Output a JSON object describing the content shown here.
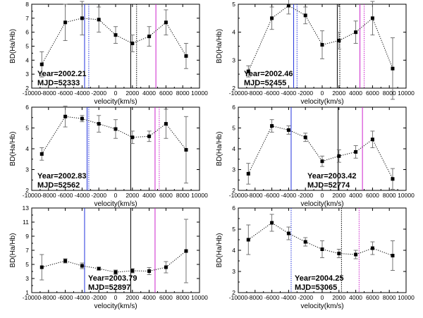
{
  "figure": {
    "panel_count": 6,
    "colors": {
      "data": "#000000",
      "errorbar": "#666666",
      "blue_line": "#2233dd",
      "magenta_line": "#cc22cc",
      "black_line": "#000000"
    }
  },
  "chart_data": [
    {
      "type": "line",
      "title": "",
      "xlabel": "velocity(km/s)",
      "ylabel": "BD(Ha/Hb)",
      "xlim": [
        -10000,
        10000
      ],
      "ylim": [
        2,
        8
      ],
      "xticks": [
        -10000,
        -8000,
        -6000,
        -4000,
        -2000,
        0,
        2000,
        4000,
        6000,
        8000,
        10000
      ],
      "yticks": [
        2,
        3,
        4,
        5,
        6,
        7,
        8
      ],
      "x": [
        -8800,
        -6000,
        -4000,
        -2000,
        0,
        2000,
        4000,
        6000,
        8400
      ],
      "y": [
        3.7,
        6.7,
        7.0,
        6.9,
        5.8,
        5.2,
        5.7,
        6.7,
        4.3
      ],
      "errors": [
        0.9,
        1.3,
        1.2,
        0.9,
        0.6,
        0.6,
        0.7,
        0.9,
        0.9
      ],
      "annotation": {
        "year": "Year=2002.21",
        "mjd": "MJD=52333"
      },
      "annotation_position": "lower-left",
      "vlines": [
        {
          "x": -3700,
          "color": "#2233dd",
          "style": "solid"
        },
        {
          "x": -3200,
          "color": "#2233dd",
          "style": "dotted"
        },
        {
          "x": 1800,
          "color": "#000000",
          "style": "solid"
        },
        {
          "x": 2500,
          "color": "#000000",
          "style": "dotted"
        },
        {
          "x": 4800,
          "color": "#cc22cc",
          "style": "solid"
        }
      ]
    },
    {
      "type": "line",
      "title": "",
      "xlabel": "velocity(km/s)",
      "ylabel": "BD(Ha/Hb)",
      "xlim": [
        -10000,
        10000
      ],
      "ylim": [
        2,
        5
      ],
      "xticks": [
        -10000,
        -8000,
        -6000,
        -4000,
        -2000,
        0,
        2000,
        4000,
        6000,
        8000,
        10000
      ],
      "yticks": [
        2,
        3,
        4,
        5
      ],
      "x": [
        -8800,
        -6000,
        -4000,
        -2000,
        0,
        2000,
        4000,
        6000,
        8400
      ],
      "y": [
        2.6,
        4.5,
        4.95,
        4.6,
        3.55,
        3.7,
        4.0,
        4.5,
        2.7
      ],
      "errors": [
        0.2,
        0.4,
        0.3,
        0.3,
        0.5,
        0.3,
        0.4,
        0.6,
        1.1
      ],
      "annotation": {
        "year": "Year=2002.46",
        "mjd": "MJD=52455"
      },
      "annotation_position": "lower-left",
      "vlines": [
        {
          "x": -3400,
          "color": "#2233dd",
          "style": "solid"
        },
        {
          "x": -3000,
          "color": "#2233dd",
          "style": "dotted"
        },
        {
          "x": 1800,
          "color": "#000000",
          "style": "solid"
        },
        {
          "x": 2100,
          "color": "#000000",
          "style": "dotted"
        },
        {
          "x": 4500,
          "color": "#cc22cc",
          "style": "solid"
        },
        {
          "x": 5000,
          "color": "#cc22cc",
          "style": "dotted"
        }
      ]
    },
    {
      "type": "line",
      "title": "",
      "xlabel": "velocity(km/s)",
      "ylabel": "BD(Ha/Hb)",
      "xlim": [
        -10000,
        10000
      ],
      "ylim": [
        2,
        6
      ],
      "xticks": [
        -10000,
        -8000,
        -6000,
        -4000,
        -2000,
        0,
        2000,
        4000,
        6000,
        8000,
        10000
      ],
      "yticks": [
        2,
        3,
        4,
        5,
        6
      ],
      "x": [
        -8800,
        -6000,
        -4000,
        -2000,
        0,
        2000,
        4000,
        6000,
        8400
      ],
      "y": [
        3.75,
        5.55,
        5.45,
        5.2,
        4.95,
        4.55,
        4.6,
        5.2,
        3.95
      ],
      "errors": [
        0.3,
        0.5,
        0.15,
        0.4,
        0.45,
        0.3,
        0.25,
        0.7,
        1.6
      ],
      "annotation": {
        "year": "Year=2002.83",
        "mjd": "MJD=52562"
      },
      "annotation_position": "lower-left",
      "vlines": [
        {
          "x": -3400,
          "color": "#2233dd",
          "style": "solid"
        },
        {
          "x": -3200,
          "color": "#2233dd",
          "style": "dotted"
        },
        {
          "x": 1800,
          "color": "#000000",
          "style": "solid"
        },
        {
          "x": 4700,
          "color": "#cc22cc",
          "style": "solid"
        },
        {
          "x": 5200,
          "color": "#cc22cc",
          "style": "dotted"
        }
      ]
    },
    {
      "type": "line",
      "title": "",
      "xlabel": "velocity(km/s)",
      "ylabel": "BD(Ha/Hb)",
      "xlim": [
        -10000,
        10000
      ],
      "ylim": [
        2,
        6
      ],
      "xticks": [
        -10000,
        -8000,
        -6000,
        -4000,
        -2000,
        0,
        2000,
        4000,
        6000,
        8000,
        10000
      ],
      "yticks": [
        2,
        3,
        4,
        5,
        6
      ],
      "x": [
        -8800,
        -6000,
        -4000,
        -2000,
        0,
        2000,
        4000,
        6000,
        8400
      ],
      "y": [
        2.8,
        5.1,
        4.9,
        4.55,
        3.4,
        3.65,
        3.85,
        4.45,
        2.55
      ],
      "errors": [
        0.5,
        0.3,
        0.2,
        0.2,
        0.25,
        0.3,
        0.3,
        0.4,
        0.5
      ],
      "annotation": {
        "year": "Year=2003.42",
        "mjd": "MJD=52774"
      },
      "annotation_position": "lower-right",
      "vlines": [
        {
          "x": -3700,
          "color": "#2233dd",
          "style": "solid"
        },
        {
          "x": 1900,
          "color": "#000000",
          "style": "solid"
        },
        {
          "x": 4800,
          "color": "#cc22cc",
          "style": "solid"
        }
      ]
    },
    {
      "type": "line",
      "title": "",
      "xlabel": "velocity(km/s)",
      "ylabel": "BD(Ha/Hb)",
      "xlim": [
        -10000,
        10000
      ],
      "ylim": [
        1,
        13
      ],
      "xticks": [
        -10000,
        -8000,
        -6000,
        -4000,
        -2000,
        0,
        2000,
        4000,
        6000,
        8000,
        10000
      ],
      "yticks": [
        1,
        3,
        5,
        7,
        9,
        11,
        13
      ],
      "x": [
        -8800,
        -6000,
        -4000,
        -2000,
        0,
        2000,
        4000,
        6000,
        8400
      ],
      "y": [
        4.6,
        5.5,
        4.8,
        4.4,
        3.9,
        4.1,
        4.05,
        4.6,
        6.9
      ],
      "errors": [
        1.8,
        0.3,
        0.4,
        0.2,
        0.3,
        0.3,
        0.5,
        0.8,
        4.5
      ],
      "annotation": {
        "year": "Year=2003.79",
        "mjd": "MJD=52897"
      },
      "annotation_position": "lower-center",
      "vlines": [
        {
          "x": -3700,
          "color": "#2233dd",
          "style": "solid"
        },
        {
          "x": 1800,
          "color": "#000000",
          "style": "solid"
        },
        {
          "x": 4700,
          "color": "#cc22cc",
          "style": "solid"
        }
      ]
    },
    {
      "type": "line",
      "title": "",
      "xlabel": "velocity(km/s)",
      "ylabel": "BD(Ha/Hb)",
      "xlim": [
        -10000,
        10000
      ],
      "ylim": [
        2,
        6
      ],
      "xticks": [
        -10000,
        -8000,
        -6000,
        -4000,
        -2000,
        0,
        2000,
        4000,
        6000,
        8000,
        10000
      ],
      "yticks": [
        2,
        3,
        4,
        5,
        6
      ],
      "x": [
        -8800,
        -6000,
        -4000,
        -2000,
        0,
        2000,
        4000,
        6000,
        8400
      ],
      "y": [
        4.5,
        5.3,
        4.8,
        4.4,
        4.05,
        3.85,
        3.8,
        4.1,
        3.75
      ],
      "errors": [
        0.7,
        0.4,
        0.3,
        0.2,
        0.4,
        0.2,
        0.2,
        0.3,
        0.7
      ],
      "annotation": {
        "year": "Year=2004.25",
        "mjd": "MJD=53065"
      },
      "annotation_position": "lower-center",
      "vlines": [
        {
          "x": -3700,
          "color": "#2233dd",
          "style": "dotted"
        },
        {
          "x": 2300,
          "color": "#000000",
          "style": "dotted"
        },
        {
          "x": 4400,
          "color": "#cc22cc",
          "style": "dotted"
        }
      ]
    }
  ]
}
